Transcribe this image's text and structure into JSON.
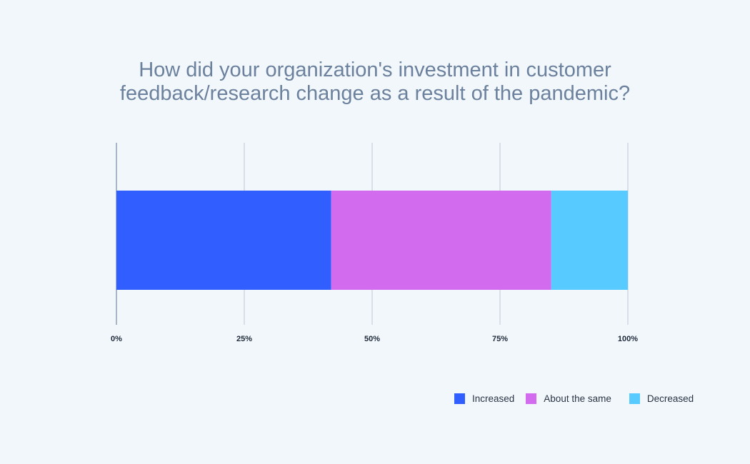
{
  "chart_data": {
    "type": "bar",
    "orientation": "horizontal",
    "stacked": true,
    "title": "How did your organization's investment in customer feedback/research change as a result of the pandemic?",
    "title_lines": [
      "How did your organization's investment in customer",
      "feedback/research change as a result of the pandemic?"
    ],
    "categories": [
      ""
    ],
    "series": [
      {
        "name": "Increased",
        "values": [
          42
        ],
        "color": "#315efe"
      },
      {
        "name": "About the same",
        "values": [
          43
        ],
        "color": "#d36bef"
      },
      {
        "name": "Decreased",
        "values": [
          15
        ],
        "color": "#57cbff"
      }
    ],
    "xlim": [
      0,
      100
    ],
    "x_ticks": [
      0,
      25,
      50,
      75,
      100
    ],
    "x_tick_labels": [
      "0%",
      "25%",
      "50%",
      "75%",
      "100%"
    ],
    "grid": true,
    "legend_position": "bottom-right"
  }
}
